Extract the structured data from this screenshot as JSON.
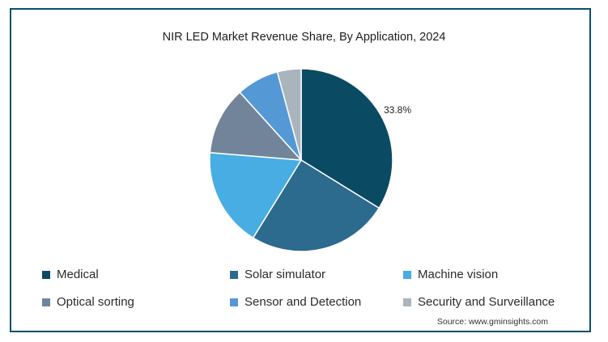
{
  "chart_data": {
    "type": "pie",
    "title": "NIR LED Market Revenue Share, By Application, 2024",
    "categories": [
      "Medical",
      "Solar simulator",
      "Machine vision",
      "Optical sorting",
      "Sensor and Detection",
      "Security and Surveillance"
    ],
    "values": [
      33.8,
      25.0,
      17.5,
      12.0,
      7.5,
      4.2
    ],
    "colors": [
      "#0a4a63",
      "#2c6a8e",
      "#47ade3",
      "#71849a",
      "#5499d6",
      "#a9b4bd"
    ],
    "labels": [
      {
        "category": "Medical",
        "text": "33.8%"
      }
    ],
    "legend_position": "bottom"
  },
  "source": "Source: www.gminsights.com"
}
